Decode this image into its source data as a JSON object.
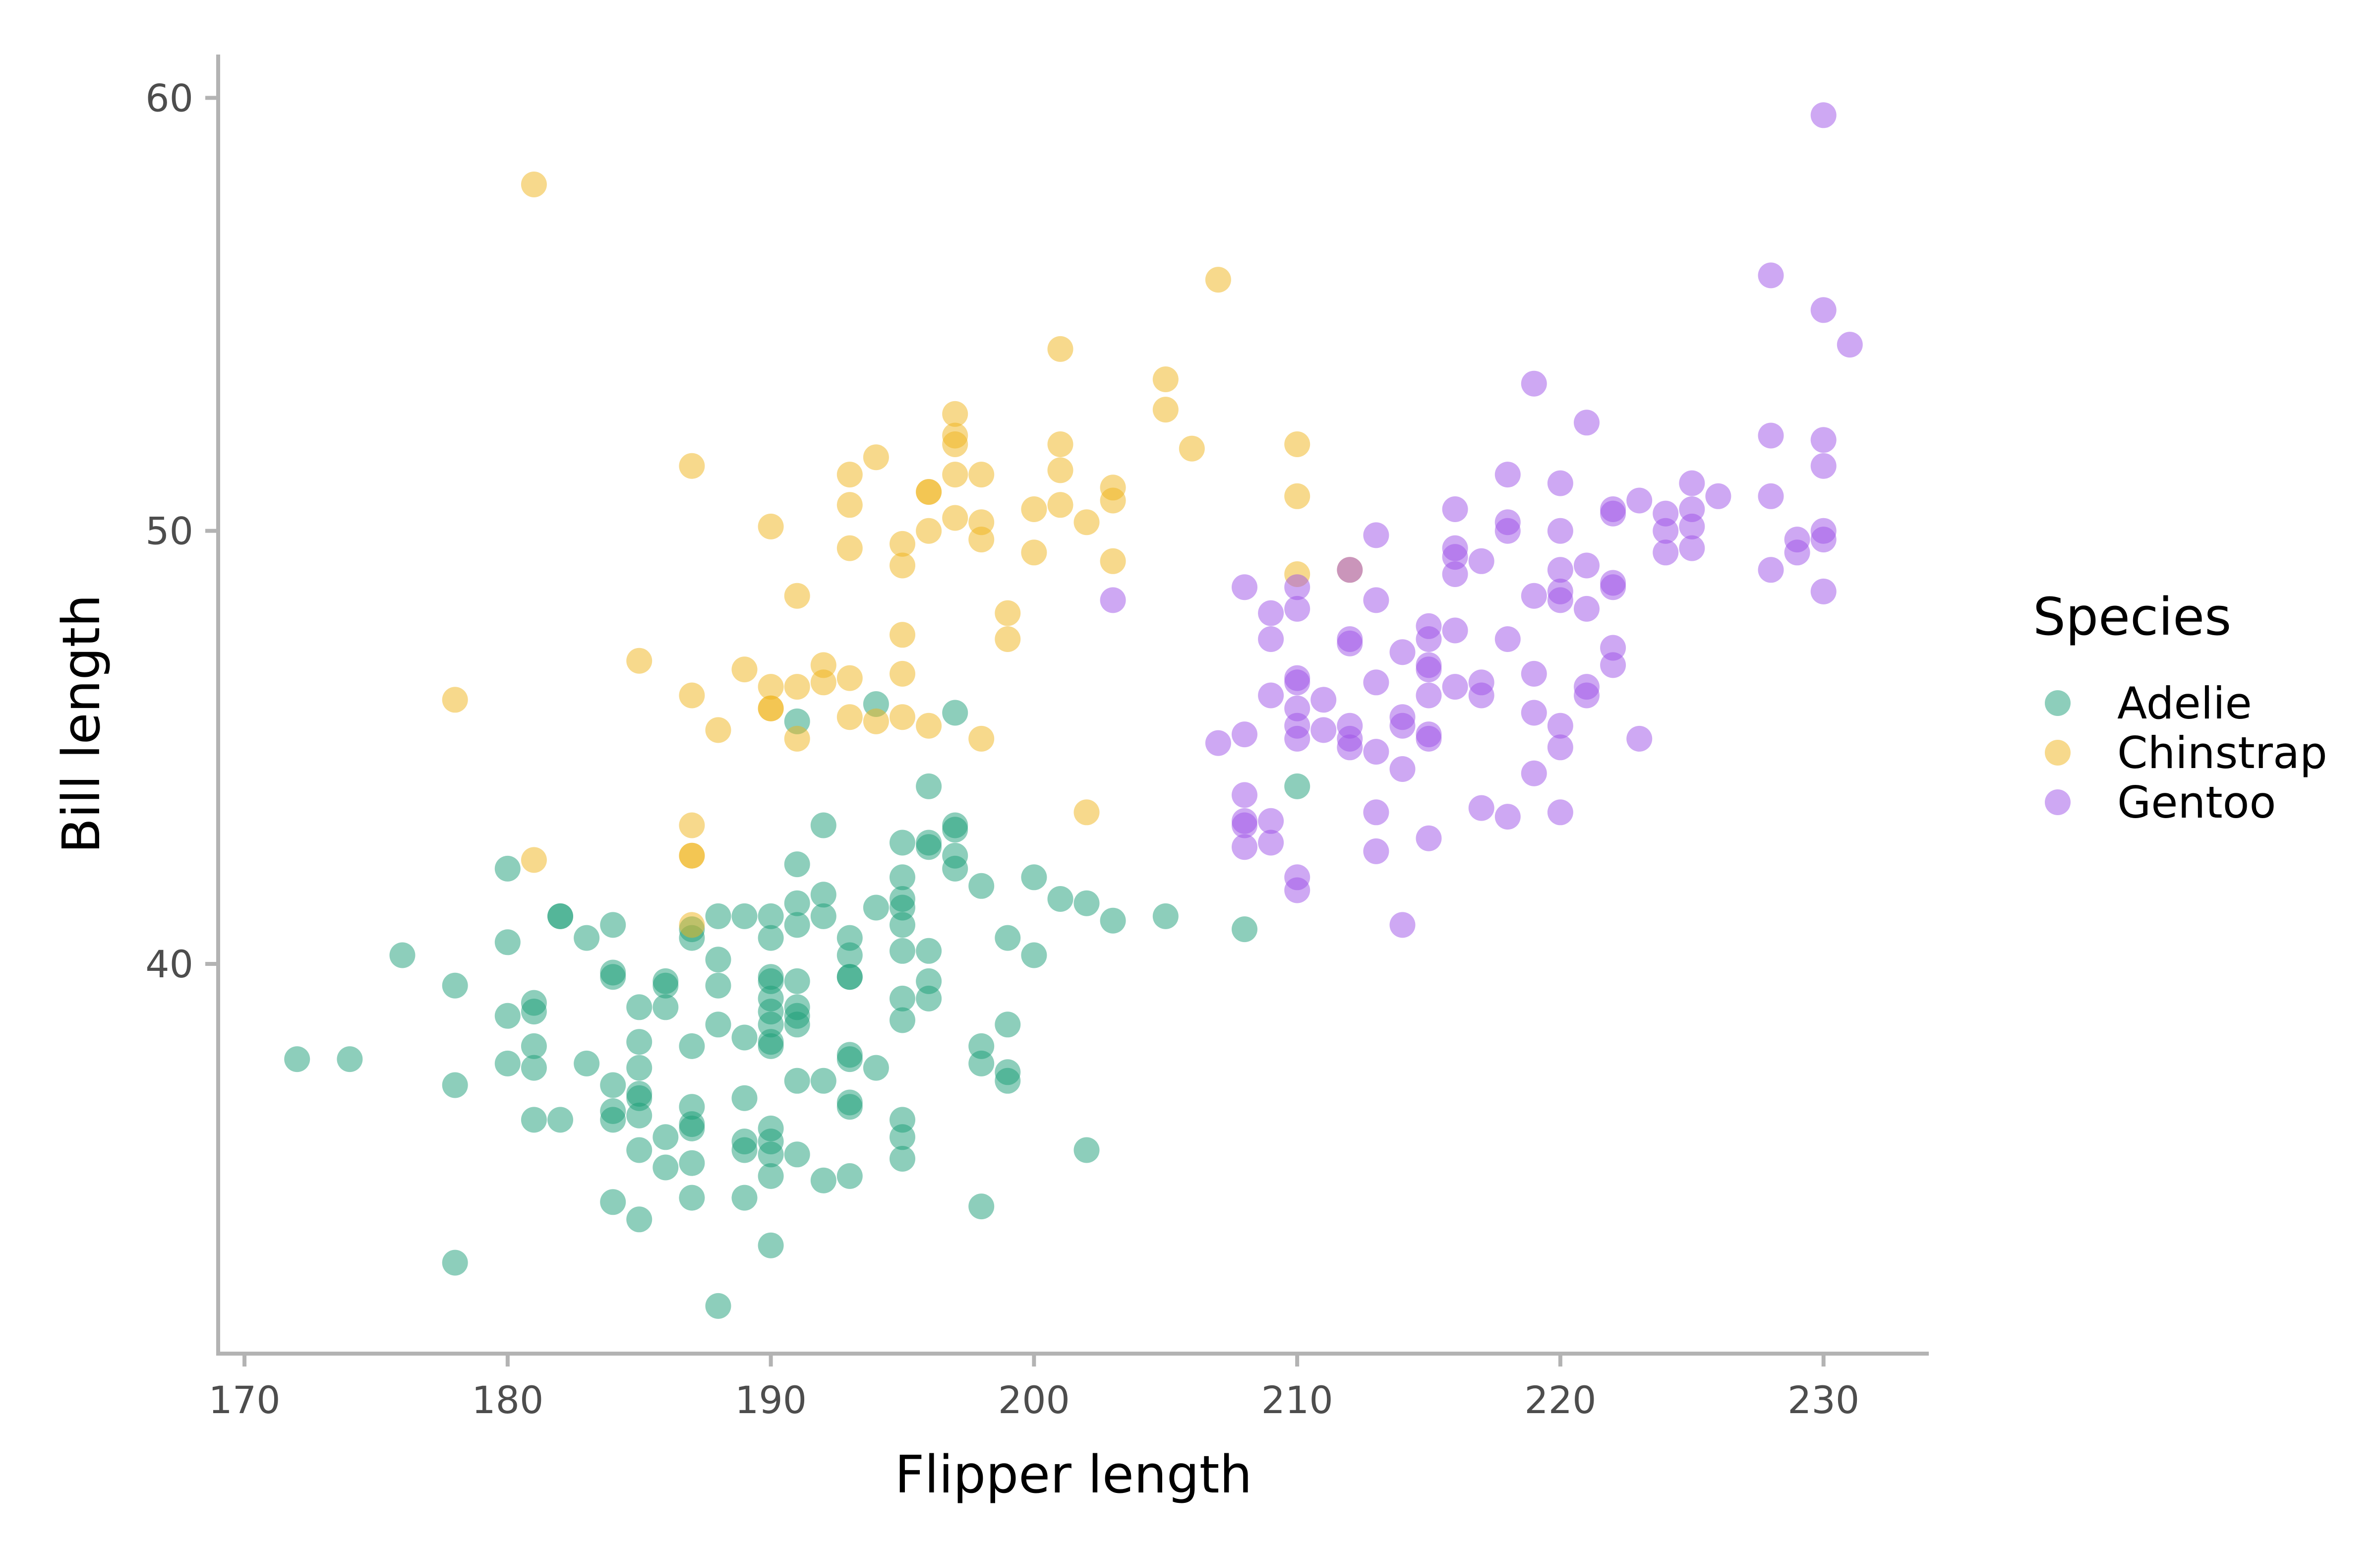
{
  "chart_data": {
    "type": "scatter",
    "xlabel": "Flipper length",
    "ylabel": "Bill length",
    "xlim": [
      169,
      234
    ],
    "ylim": [
      31,
      61
    ],
    "xticks": [
      170,
      180,
      190,
      200,
      210,
      220,
      230
    ],
    "yticks": [
      40,
      50,
      60
    ],
    "grid": false,
    "legend": {
      "title": "Species",
      "placement": "right"
    },
    "point_opacity": 0.5,
    "series": [
      {
        "name": "Adelie",
        "color": "#1b9e77",
        "points": [
          [
            172,
            37.8
          ],
          [
            174,
            37.8
          ],
          [
            176,
            40.2
          ],
          [
            178,
            39.5
          ],
          [
            178,
            37.2
          ],
          [
            178,
            33.1
          ],
          [
            180,
            42.2
          ],
          [
            180,
            40.5
          ],
          [
            180,
            38.8
          ],
          [
            180,
            37.7
          ],
          [
            181,
            39.1
          ],
          [
            181,
            38.9
          ],
          [
            181,
            38.1
          ],
          [
            181,
            37.6
          ],
          [
            181,
            36.4
          ],
          [
            182,
            41.1
          ],
          [
            182,
            41.1
          ],
          [
            182,
            36.4
          ],
          [
            183,
            40.6
          ],
          [
            183,
            37.7
          ],
          [
            184,
            40.9
          ],
          [
            184,
            39.8
          ],
          [
            184,
            39.7
          ],
          [
            184,
            37.2
          ],
          [
            184,
            36.6
          ],
          [
            184,
            36.4
          ],
          [
            184,
            34.5
          ],
          [
            185,
            39.0
          ],
          [
            185,
            38.2
          ],
          [
            185,
            37.6
          ],
          [
            185,
            37.0
          ],
          [
            185,
            36.9
          ],
          [
            185,
            36.5
          ],
          [
            185,
            35.7
          ],
          [
            185,
            34.1
          ],
          [
            186,
            39.6
          ],
          [
            186,
            39.5
          ],
          [
            186,
            39.0
          ],
          [
            186,
            36.0
          ],
          [
            186,
            35.3
          ],
          [
            187,
            40.6
          ],
          [
            187,
            40.8
          ],
          [
            187,
            38.1
          ],
          [
            187,
            36.7
          ],
          [
            187,
            36.2
          ],
          [
            187,
            36.3
          ],
          [
            187,
            35.4
          ],
          [
            187,
            34.6
          ],
          [
            188,
            41.1
          ],
          [
            188,
            40.1
          ],
          [
            188,
            39.5
          ],
          [
            188,
            38.6
          ],
          [
            188,
            32.1
          ],
          [
            189,
            41.1
          ],
          [
            189,
            38.3
          ],
          [
            189,
            36.9
          ],
          [
            189,
            35.9
          ],
          [
            189,
            35.7
          ],
          [
            189,
            34.6
          ],
          [
            190,
            41.1
          ],
          [
            190,
            40.6
          ],
          [
            190,
            39.7
          ],
          [
            190,
            39.6
          ],
          [
            190,
            39.2
          ],
          [
            190,
            38.9
          ],
          [
            190,
            38.6
          ],
          [
            190,
            38.1
          ],
          [
            190,
            38.2
          ],
          [
            190,
            36.2
          ],
          [
            190,
            35.9
          ],
          [
            190,
            35.6
          ],
          [
            190,
            35.1
          ],
          [
            190,
            33.5
          ],
          [
            191,
            45.6
          ],
          [
            191,
            42.3
          ],
          [
            191,
            41.4
          ],
          [
            191,
            40.9
          ],
          [
            191,
            39.6
          ],
          [
            191,
            39.0
          ],
          [
            191,
            38.8
          ],
          [
            191,
            38.6
          ],
          [
            191,
            37.3
          ],
          [
            191,
            35.6
          ],
          [
            192,
            43.2
          ],
          [
            192,
            41.6
          ],
          [
            192,
            41.1
          ],
          [
            192,
            37.3
          ],
          [
            192,
            35.0
          ],
          [
            193,
            40.6
          ],
          [
            193,
            40.2
          ],
          [
            193,
            39.7
          ],
          [
            193,
            39.7
          ],
          [
            193,
            37.9
          ],
          [
            193,
            37.8
          ],
          [
            193,
            36.8
          ],
          [
            193,
            36.7
          ],
          [
            193,
            35.1
          ],
          [
            194,
            46.0
          ],
          [
            194,
            41.3
          ],
          [
            194,
            37.6
          ],
          [
            195,
            42.8
          ],
          [
            195,
            42.0
          ],
          [
            195,
            41.5
          ],
          [
            195,
            41.3
          ],
          [
            195,
            40.9
          ],
          [
            195,
            40.3
          ],
          [
            195,
            39.2
          ],
          [
            195,
            38.7
          ],
          [
            195,
            36.4
          ],
          [
            195,
            36.0
          ],
          [
            195,
            35.5
          ],
          [
            196,
            44.1
          ],
          [
            196,
            42.8
          ],
          [
            196,
            42.7
          ],
          [
            196,
            40.3
          ],
          [
            196,
            39.6
          ],
          [
            196,
            39.2
          ],
          [
            197,
            45.8
          ],
          [
            197,
            43.2
          ],
          [
            197,
            43.1
          ],
          [
            197,
            42.5
          ],
          [
            197,
            42.2
          ],
          [
            198,
            41.8
          ],
          [
            198,
            38.1
          ],
          [
            198,
            37.7
          ],
          [
            198,
            34.4
          ],
          [
            199,
            40.6
          ],
          [
            199,
            38.6
          ],
          [
            199,
            37.5
          ],
          [
            199,
            37.3
          ],
          [
            200,
            42.0
          ],
          [
            200,
            40.2
          ],
          [
            201,
            41.5
          ],
          [
            202,
            41.4
          ],
          [
            202,
            35.7
          ],
          [
            203,
            41.0
          ],
          [
            205,
            41.1
          ],
          [
            208,
            40.8
          ],
          [
            210,
            44.1
          ]
        ]
      },
      {
        "name": "Chinstrap",
        "color": "#f0b419",
        "points": [
          [
            178,
            46.1
          ],
          [
            181,
            58.0
          ],
          [
            181,
            42.4
          ],
          [
            185,
            47.0
          ],
          [
            187,
            51.5
          ],
          [
            187,
            46.2
          ],
          [
            187,
            43.2
          ],
          [
            187,
            42.5
          ],
          [
            187,
            42.5
          ],
          [
            187,
            40.9
          ],
          [
            188,
            45.4
          ],
          [
            189,
            46.8
          ],
          [
            190,
            50.1
          ],
          [
            190,
            46.4
          ],
          [
            190,
            45.9
          ],
          [
            190,
            45.9
          ],
          [
            191,
            48.5
          ],
          [
            191,
            46.4
          ],
          [
            191,
            45.2
          ],
          [
            192,
            46.9
          ],
          [
            192,
            46.5
          ],
          [
            193,
            51.3
          ],
          [
            193,
            50.6
          ],
          [
            193,
            49.6
          ],
          [
            193,
            46.6
          ],
          [
            193,
            45.7
          ],
          [
            194,
            51.7
          ],
          [
            194,
            45.6
          ],
          [
            195,
            49.7
          ],
          [
            195,
            49.2
          ],
          [
            195,
            47.6
          ],
          [
            195,
            46.7
          ],
          [
            195,
            45.7
          ],
          [
            196,
            50.9
          ],
          [
            196,
            50.9
          ],
          [
            196,
            50.0
          ],
          [
            196,
            45.5
          ],
          [
            197,
            52.7
          ],
          [
            197,
            52.2
          ],
          [
            197,
            52.0
          ],
          [
            197,
            51.3
          ],
          [
            197,
            50.3
          ],
          [
            198,
            51.3
          ],
          [
            198,
            50.2
          ],
          [
            198,
            49.8
          ],
          [
            198,
            45.2
          ],
          [
            199,
            48.1
          ],
          [
            199,
            47.5
          ],
          [
            200,
            50.5
          ],
          [
            200,
            49.5
          ],
          [
            201,
            54.2
          ],
          [
            201,
            52.0
          ],
          [
            201,
            51.4
          ],
          [
            201,
            50.6
          ],
          [
            202,
            50.2
          ],
          [
            202,
            43.5
          ],
          [
            203,
            51.0
          ],
          [
            203,
            50.7
          ],
          [
            203,
            49.3
          ],
          [
            205,
            53.5
          ],
          [
            205,
            52.8
          ],
          [
            206,
            51.9
          ],
          [
            207,
            55.8
          ],
          [
            210,
            52.0
          ],
          [
            210,
            50.8
          ],
          [
            210,
            49.0
          ],
          [
            212,
            49.1
          ]
        ]
      },
      {
        "name": "Gentoo",
        "color": "#9e52e8",
        "points": [
          [
            203,
            48.4
          ],
          [
            207,
            45.1
          ],
          [
            208,
            48.7
          ],
          [
            208,
            45.3
          ],
          [
            208,
            43.9
          ],
          [
            208,
            43.2
          ],
          [
            208,
            43.3
          ],
          [
            208,
            42.7
          ],
          [
            209,
            48.1
          ],
          [
            209,
            47.5
          ],
          [
            209,
            46.2
          ],
          [
            209,
            43.3
          ],
          [
            209,
            42.8
          ],
          [
            210,
            48.7
          ],
          [
            210,
            48.2
          ],
          [
            210,
            46.6
          ],
          [
            210,
            46.5
          ],
          [
            210,
            45.9
          ],
          [
            210,
            45.5
          ],
          [
            210,
            45.2
          ],
          [
            210,
            42.0
          ],
          [
            210,
            41.7
          ],
          [
            211,
            46.1
          ],
          [
            211,
            45.4
          ],
          [
            212,
            49.1
          ],
          [
            212,
            47.5
          ],
          [
            212,
            47.4
          ],
          [
            212,
            45.5
          ],
          [
            212,
            45.2
          ],
          [
            212,
            45.0
          ],
          [
            213,
            49.9
          ],
          [
            213,
            48.4
          ],
          [
            213,
            46.5
          ],
          [
            213,
            44.9
          ],
          [
            213,
            43.5
          ],
          [
            213,
            42.6
          ],
          [
            214,
            47.2
          ],
          [
            214,
            45.7
          ],
          [
            214,
            45.5
          ],
          [
            214,
            44.5
          ],
          [
            214,
            40.9
          ],
          [
            215,
            47.8
          ],
          [
            215,
            47.5
          ],
          [
            215,
            46.9
          ],
          [
            215,
            46.8
          ],
          [
            215,
            46.2
          ],
          [
            215,
            45.3
          ],
          [
            215,
            45.2
          ],
          [
            215,
            42.9
          ],
          [
            216,
            50.5
          ],
          [
            216,
            49.6
          ],
          [
            216,
            49.4
          ],
          [
            216,
            49.0
          ],
          [
            216,
            47.7
          ],
          [
            216,
            46.4
          ],
          [
            217,
            49.3
          ],
          [
            217,
            46.5
          ],
          [
            217,
            46.2
          ],
          [
            217,
            43.6
          ],
          [
            218,
            51.3
          ],
          [
            218,
            50.2
          ],
          [
            218,
            50.0
          ],
          [
            218,
            47.5
          ],
          [
            218,
            43.4
          ],
          [
            219,
            53.4
          ],
          [
            219,
            48.5
          ],
          [
            219,
            46.7
          ],
          [
            219,
            45.8
          ],
          [
            219,
            44.4
          ],
          [
            220,
            51.1
          ],
          [
            220,
            50.0
          ],
          [
            220,
            49.1
          ],
          [
            220,
            48.6
          ],
          [
            220,
            48.4
          ],
          [
            220,
            45.5
          ],
          [
            220,
            45.0
          ],
          [
            220,
            43.5
          ],
          [
            221,
            52.5
          ],
          [
            221,
            49.2
          ],
          [
            221,
            48.2
          ],
          [
            221,
            46.4
          ],
          [
            221,
            46.2
          ],
          [
            222,
            50.5
          ],
          [
            222,
            50.4
          ],
          [
            222,
            48.8
          ],
          [
            222,
            48.7
          ],
          [
            222,
            47.3
          ],
          [
            222,
            46.9
          ],
          [
            223,
            50.7
          ],
          [
            223,
            45.2
          ],
          [
            224,
            50.4
          ],
          [
            224,
            50.0
          ],
          [
            224,
            49.5
          ],
          [
            225,
            51.1
          ],
          [
            225,
            50.5
          ],
          [
            225,
            50.1
          ],
          [
            225,
            49.6
          ],
          [
            226,
            50.8
          ],
          [
            228,
            55.9
          ],
          [
            228,
            52.2
          ],
          [
            228,
            50.8
          ],
          [
            228,
            49.1
          ],
          [
            229,
            49.8
          ],
          [
            229,
            49.5
          ],
          [
            230,
            59.6
          ],
          [
            230,
            55.1
          ],
          [
            230,
            52.1
          ],
          [
            230,
            51.5
          ],
          [
            230,
            50.0
          ],
          [
            230,
            49.8
          ],
          [
            230,
            48.6
          ],
          [
            231,
            54.3
          ]
        ]
      }
    ]
  }
}
